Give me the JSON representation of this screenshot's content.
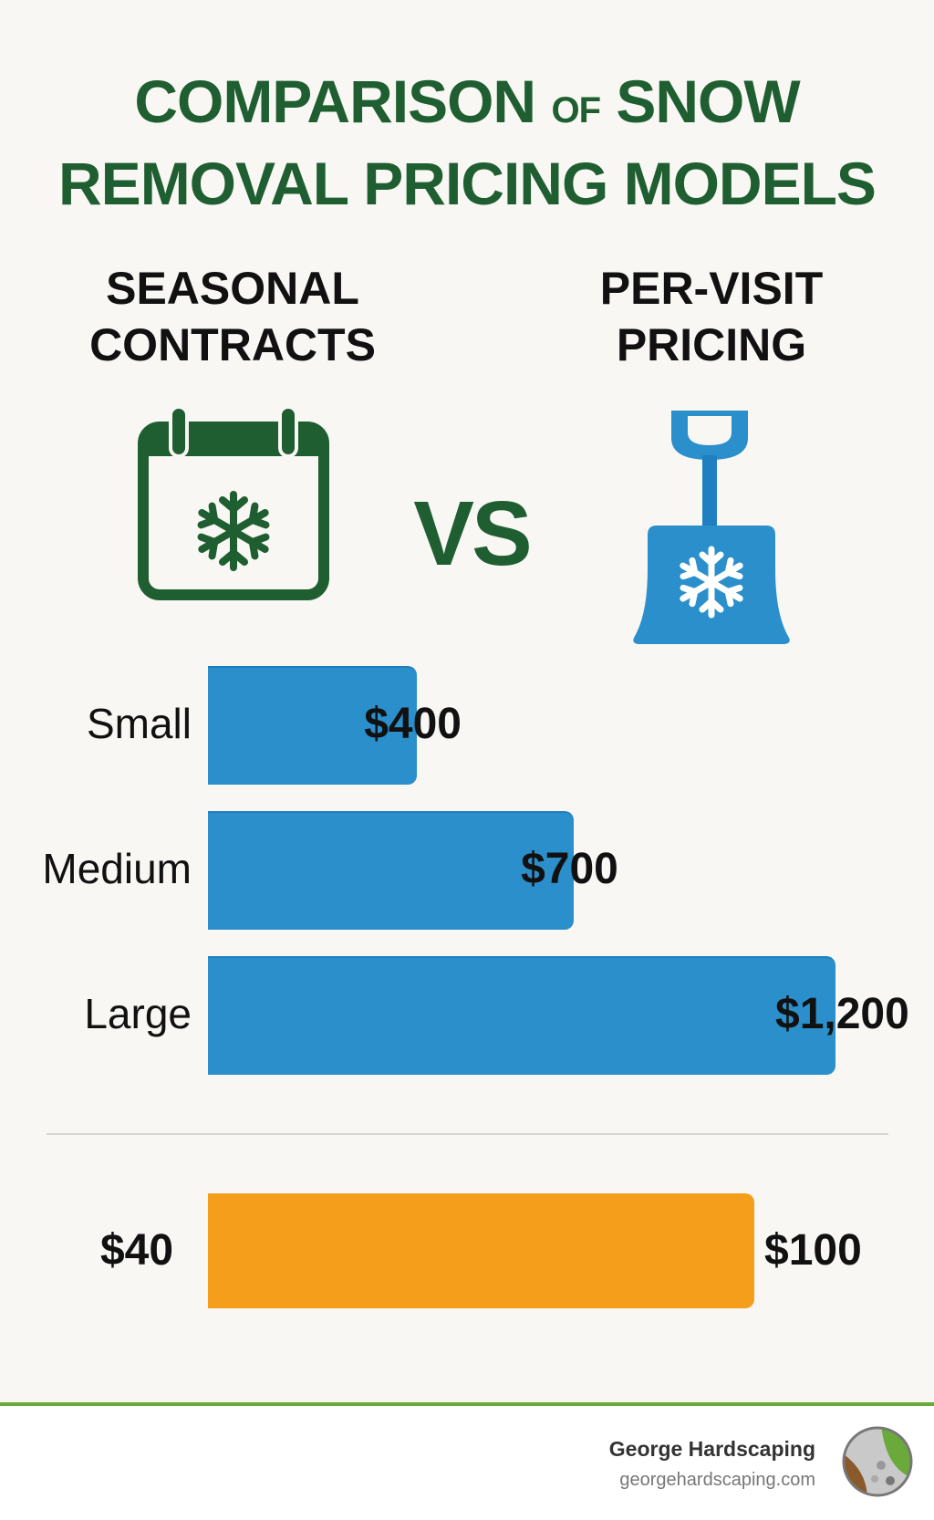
{
  "title": {
    "line1_a": "COMPARISON",
    "line1_of": "OF",
    "line1_b": "SNOW",
    "line2": "REMOVAL PRICING MODELS"
  },
  "left_heading": {
    "line1": "SEASONAL",
    "line2": "CONTRACTS",
    "icon": "calendar-snowflake-icon"
  },
  "vs_label": "VS",
  "right_heading": {
    "line1": "PER-VISIT",
    "line2": "PRICING",
    "icon": "snow-shovel-icon"
  },
  "colors": {
    "title": "#1f5e30",
    "seasonal_bar": "#2a8fcb",
    "per_visit_bar": "#f59e1c",
    "accent_line": "#6aaa3a"
  },
  "chart_data": [
    {
      "type": "bar",
      "orientation": "horizontal",
      "categories": [
        "Small",
        "Medium",
        "Large"
      ],
      "values": [
        400,
        700,
        1200
      ],
      "data_labels": [
        "$400",
        "$700",
        "$1,200"
      ]
    },
    {
      "type": "bar",
      "orientation": "horizontal",
      "range": [
        40,
        100
      ],
      "data_labels": [
        "$40",
        "$100"
      ]
    }
  ],
  "footer": {
    "company": "George Hardscaping",
    "website": "georgehardscaping.com"
  }
}
